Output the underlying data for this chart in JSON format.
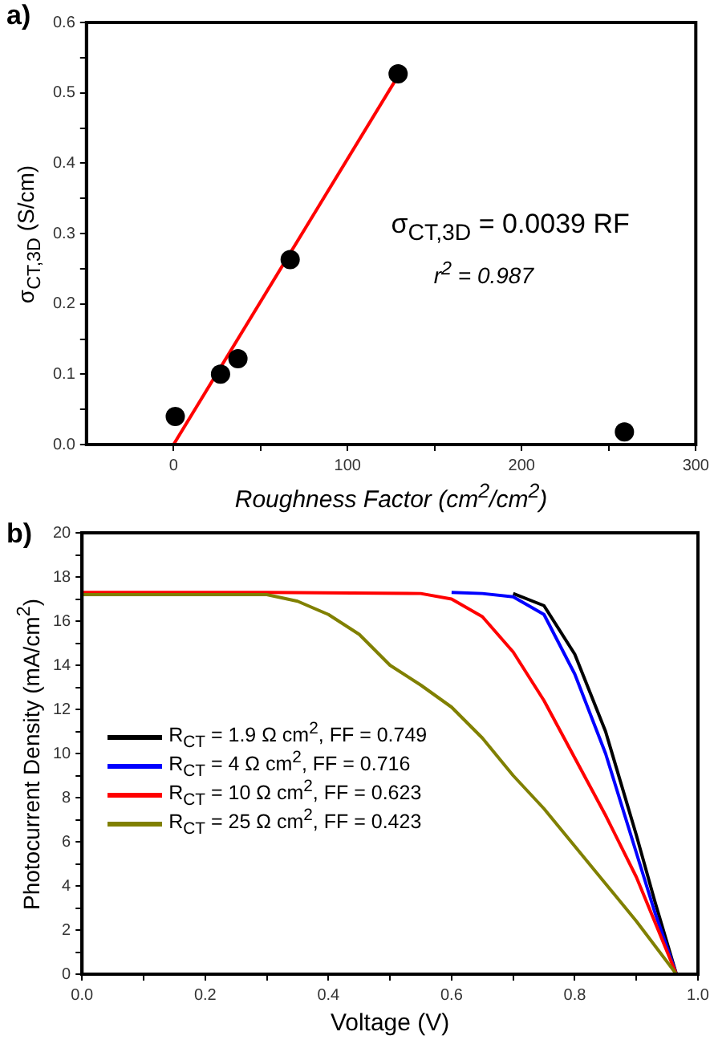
{
  "chart_data": [
    {
      "type": "scatter",
      "title": "a)",
      "xlabel": "Roughness Factor (cm$^{2}$/cm$^{2}$)",
      "ylabel": "σ$_{CT,3D}$ (S/cm)",
      "annotations": [
        "σ$_{CT,3D}$ = 0.0039 RF",
        "r$^{2}$ = 0.987"
      ],
      "xlim": [
        -50,
        300
      ],
      "ylim": [
        0,
        0.6
      ],
      "xticks": [
        0,
        {
          "value": 50,
          "label": null
        },
        100,
        {
          "value": 150,
          "label": null
        },
        200,
        {
          "value": 250,
          "label": null
        },
        300
      ],
      "yticks": [
        {
          "value": 0,
          "label": "0.0"
        },
        {
          "value": 0.05,
          "label": null
        },
        {
          "value": 0.1,
          "label": "0.1"
        },
        {
          "value": 0.15,
          "label": null
        },
        {
          "value": 0.2,
          "label": "0.2"
        },
        {
          "value": 0.25,
          "label": null
        },
        {
          "value": 0.3,
          "label": "0.3"
        },
        {
          "value": 0.35,
          "label": null
        },
        {
          "value": 0.4,
          "label": "0.4"
        },
        {
          "value": 0.45,
          "label": null
        },
        {
          "value": 0.5,
          "label": "0.5"
        },
        {
          "value": 0.55,
          "label": null
        },
        {
          "value": 0.6,
          "label": "0.6"
        }
      ],
      "grid": false,
      "legend": false,
      "series": [
        {
          "color": "#000000",
          "marker": "circle",
          "x": [
            1,
            27,
            37,
            67,
            129,
            259
          ],
          "values": [
            0.04,
            0.1,
            0.122,
            0.263,
            0.527,
            0.018
          ]
        },
        {
          "type": "line",
          "color": "#ff0000",
          "marker": "none",
          "x": [
            0,
            128
          ],
          "values": [
            0,
            0.52
          ]
        }
      ]
    },
    {
      "type": "line",
      "title": "b)",
      "xlabel": "Voltage (V)",
      "ylabel": "Photocurrent Density (mA/cm$^{2}$)",
      "xlim": [
        0,
        1.0
      ],
      "ylim": [
        0,
        20
      ],
      "xticks": [
        {
          "value": 0,
          "label": "0.0"
        },
        {
          "value": 0.1,
          "label": null
        },
        {
          "value": 0.2,
          "label": "0.2"
        },
        {
          "value": 0.3,
          "label": null
        },
        {
          "value": 0.4,
          "label": "0.4"
        },
        {
          "value": 0.5,
          "label": null
        },
        {
          "value": 0.6,
          "label": "0.6"
        },
        {
          "value": 0.7,
          "label": null
        },
        {
          "value": 0.8,
          "label": "0.8"
        },
        {
          "value": 0.9,
          "label": null
        },
        {
          "value": 1.0,
          "label": "1.0"
        }
      ],
      "yticks": [
        0,
        {
          "value": 1,
          "label": null
        },
        2,
        {
          "value": 3,
          "label": null
        },
        4,
        {
          "value": 5,
          "label": null
        },
        6,
        {
          "value": 7,
          "label": null
        },
        8,
        {
          "value": 9,
          "label": null
        },
        10,
        {
          "value": 11,
          "label": null
        },
        12,
        {
          "value": 13,
          "label": null
        },
        14,
        {
          "value": 15,
          "label": null
        },
        16,
        {
          "value": 17,
          "label": null
        },
        18,
        {
          "value": 19,
          "label": null
        },
        20
      ],
      "grid": false,
      "legend": "bottom left",
      "marker": "none",
      "series": [
        {
          "name": "R$_{CT}$ = 1.9 Ω cm$^{2}$, FF = 0.749",
          "color": "#000000",
          "x": [
            0.7,
            0.75,
            0.8,
            0.85,
            0.9,
            0.93,
            0.965
          ],
          "values": [
            17.25,
            16.7,
            14.5,
            11.0,
            6.3,
            3.3,
            0
          ]
        },
        {
          "name": "R$_{CT}$ = 4 Ω cm$^{2}$, FF = 0.716",
          "color": "#0000ff",
          "x": [
            0.6,
            0.65,
            0.7,
            0.75,
            0.8,
            0.85,
            0.9,
            0.93,
            0.965
          ],
          "values": [
            17.3,
            17.25,
            17.1,
            16.3,
            13.6,
            10.0,
            5.5,
            2.8,
            0
          ]
        },
        {
          "name": "R$_{CT}$ = 10 Ω cm$^{2}$, FF = 0.623",
          "color": "#ff0000",
          "x": [
            0,
            0.3,
            0.55,
            0.6,
            0.65,
            0.7,
            0.75,
            0.8,
            0.85,
            0.9,
            0.965
          ],
          "values": [
            17.3,
            17.3,
            17.25,
            17.0,
            16.2,
            14.6,
            12.4,
            9.8,
            7.2,
            4.4,
            0
          ]
        },
        {
          "name": "R$_{CT}$ = 25 Ω cm$^{2}$, FF = 0.423",
          "color": "#808000",
          "x": [
            0,
            0.3,
            0.35,
            0.4,
            0.45,
            0.5,
            0.55,
            0.6,
            0.65,
            0.7,
            0.75,
            0.8,
            0.85,
            0.9,
            0.965
          ],
          "values": [
            17.2,
            17.2,
            16.9,
            16.3,
            15.4,
            14.0,
            13.1,
            12.1,
            10.7,
            9.0,
            7.5,
            5.8,
            4.1,
            2.4,
            0
          ]
        }
      ]
    }
  ]
}
